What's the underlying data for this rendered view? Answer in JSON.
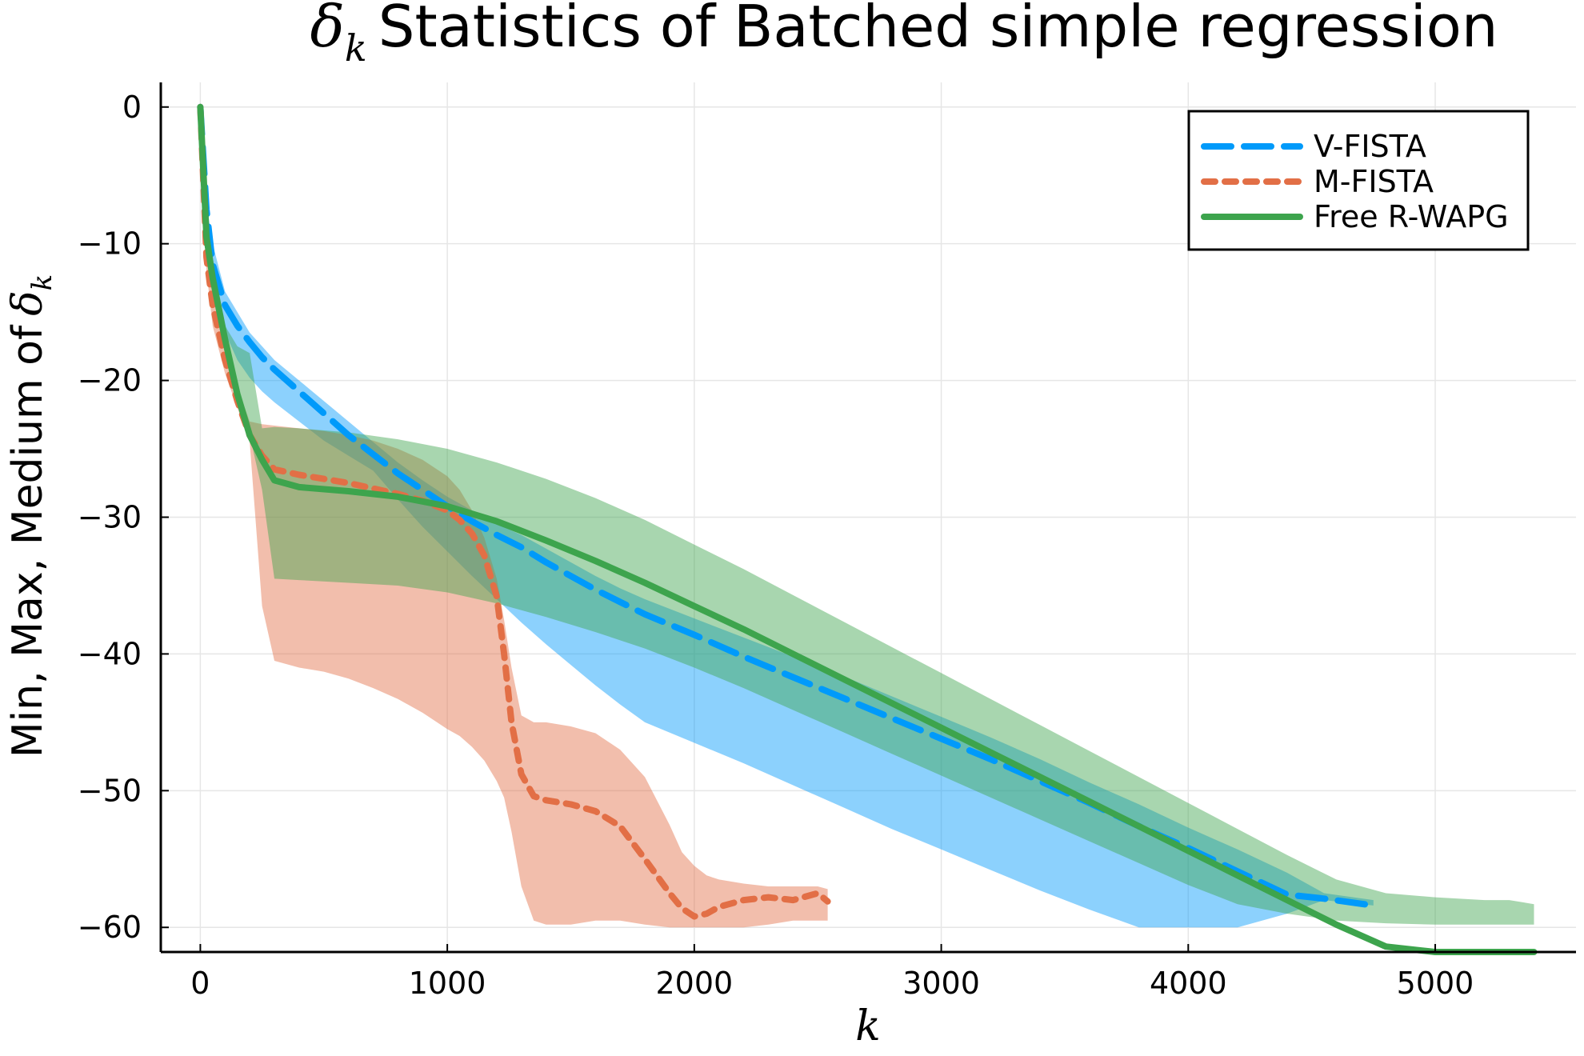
{
  "chart_data": {
    "type": "line",
    "title_symbol": "δ",
    "title_subscript": "k",
    "title_text": "Statistics of Batched simple regression",
    "xlabel": "k",
    "ylabel_text": "Min, Max, Medium of",
    "ylabel_symbol": "δ",
    "ylabel_subscript": "k",
    "xlim": [
      -160,
      5570
    ],
    "ylim": [
      -61.8,
      1.8
    ],
    "xticks": [
      0,
      1000,
      2000,
      3000,
      4000,
      5000
    ],
    "yticks": [
      0,
      -10,
      -20,
      -30,
      -40,
      -50,
      -60
    ],
    "xtick_labels": [
      "0",
      "1000",
      "2000",
      "3000",
      "4000",
      "5000"
    ],
    "ytick_labels": [
      "0",
      "−10",
      "−20",
      "−30",
      "−40",
      "−50",
      "−60"
    ],
    "grid": true,
    "legend_position": "top-right",
    "series": [
      {
        "name": "V-FISTA",
        "color": "#009AFA",
        "style": "dash",
        "x": [
          0,
          25,
          50,
          100,
          150,
          200,
          250,
          300,
          400,
          500,
          600,
          700,
          800,
          900,
          1000,
          1100,
          1200,
          1300,
          1400,
          1500,
          1600,
          1700,
          1800,
          2000,
          2200,
          2400,
          2600,
          2800,
          3000,
          3200,
          3400,
          3600,
          3800,
          4000,
          4200,
          4400,
          4550,
          4750
        ],
        "median": [
          0,
          -7.5,
          -11.5,
          -14.5,
          -16,
          -17.2,
          -18.3,
          -19.2,
          -20.8,
          -22.4,
          -24,
          -25.4,
          -26.8,
          -28,
          -29.2,
          -30.3,
          -31.3,
          -32.2,
          -33.3,
          -34.3,
          -35.3,
          -36.2,
          -37.1,
          -38.6,
          -40.2,
          -41.7,
          -43.2,
          -44.7,
          -46.2,
          -47.7,
          -49.3,
          -50.9,
          -52.6,
          -54.2,
          -55.9,
          -57.6,
          -57.9,
          -58.4
        ],
        "min": [
          0,
          -8.5,
          -13,
          -16.5,
          -18.5,
          -19.8,
          -20.8,
          -21.6,
          -23,
          -24.4,
          -25.5,
          -26.6,
          -28.7,
          -30.7,
          -32.5,
          -34.3,
          -36,
          -37.7,
          -39.3,
          -40.8,
          -42.3,
          -43.7,
          -45,
          -46.5,
          -48,
          -49.6,
          -51.2,
          -52.8,
          -54.3,
          -55.8,
          -57.3,
          -58.7,
          -60,
          -60,
          -60,
          -59,
          -58,
          -58.4
        ],
        "max": [
          0,
          -7,
          -10,
          -13.5,
          -15,
          -16.5,
          -17.5,
          -18.5,
          -20,
          -21.5,
          -23,
          -24.5,
          -26,
          -27.3,
          -28.5,
          -29.5,
          -30.5,
          -31.3,
          -32.3,
          -33.3,
          -34.3,
          -35.2,
          -36,
          -37.4,
          -38.8,
          -40.2,
          -41.6,
          -43.1,
          -44.6,
          -46.1,
          -47.7,
          -49.4,
          -51,
          -52.7,
          -54.3,
          -56,
          -57.5,
          -58
        ]
      },
      {
        "name": "M-FISTA",
        "color": "#E26F46",
        "style": "dot",
        "x": [
          0,
          25,
          50,
          100,
          150,
          200,
          250,
          300,
          400,
          500,
          600,
          700,
          800,
          900,
          1000,
          1050,
          1100,
          1150,
          1200,
          1230,
          1260,
          1300,
          1350,
          1400,
          1500,
          1600,
          1700,
          1800,
          1900,
          1950,
          2000,
          2050,
          2100,
          2200,
          2300,
          2400,
          2500,
          2540
        ],
        "median": [
          0,
          -11,
          -14.5,
          -18.5,
          -21.5,
          -24,
          -25.5,
          -26.5,
          -26.9,
          -27.2,
          -27.5,
          -27.9,
          -28.3,
          -28.8,
          -29.5,
          -30.2,
          -31.2,
          -32.8,
          -35.8,
          -40,
          -45,
          -48.8,
          -50.4,
          -50.7,
          -51,
          -51.5,
          -52.6,
          -55,
          -57.5,
          -58.6,
          -59.2,
          -59,
          -58.5,
          -58,
          -57.8,
          -58,
          -57.5,
          -58.1
        ],
        "min": [
          0,
          -12,
          -16,
          -19.5,
          -22,
          -24.5,
          -36.5,
          -40.5,
          -41,
          -41.3,
          -41.8,
          -42.5,
          -43.3,
          -44.3,
          -45.5,
          -46,
          -46.8,
          -47.8,
          -49.3,
          -50.5,
          -53,
          -57,
          -59.5,
          -59.8,
          -59.8,
          -59.5,
          -59.5,
          -59.8,
          -60,
          -60,
          -60,
          -60,
          -60,
          -60,
          -59.8,
          -59.5,
          -59.5,
          -59.5
        ],
        "max": [
          0,
          -10.5,
          -13.5,
          -17.5,
          -20.5,
          -23,
          -23.2,
          -23.3,
          -23.5,
          -23.7,
          -24,
          -24.4,
          -25,
          -25.8,
          -27,
          -28,
          -29.5,
          -31.5,
          -34.5,
          -37.5,
          -41,
          -44.5,
          -45,
          -45,
          -45.3,
          -45.8,
          -47,
          -49,
          -52.5,
          -54.5,
          -55.5,
          -56.2,
          -56.5,
          -56.8,
          -57,
          -57,
          -57,
          -57.2
        ]
      },
      {
        "name": "Free R-WAPG",
        "color": "#3DA44D",
        "style": "solid",
        "x": [
          0,
          25,
          50,
          100,
          150,
          200,
          250,
          300,
          400,
          600,
          800,
          1000,
          1200,
          1400,
          1600,
          1800,
          2000,
          2200,
          2400,
          2600,
          2800,
          3000,
          3200,
          3400,
          3600,
          3800,
          4000,
          4200,
          4400,
          4600,
          4800,
          5000,
          5200,
          5300,
          5400
        ],
        "median": [
          0,
          -9.5,
          -12.5,
          -17,
          -21,
          -24,
          -25.8,
          -27.3,
          -27.8,
          -28.1,
          -28.5,
          -29.2,
          -30.3,
          -31.7,
          -33.2,
          -34.8,
          -36.5,
          -38.2,
          -40,
          -41.8,
          -43.6,
          -45.4,
          -47.2,
          -49,
          -50.8,
          -52.6,
          -54.4,
          -56.2,
          -58,
          -59.8,
          -61.4,
          -62.2,
          -62.6,
          -62.8,
          -63
        ],
        "min": [
          0,
          -9.5,
          -12.5,
          -17,
          -21,
          -24,
          -28,
          -34.5,
          -34.6,
          -34.8,
          -35,
          -35.5,
          -36.3,
          -37.3,
          -38.4,
          -39.6,
          -41,
          -42.5,
          -44.1,
          -45.7,
          -47.3,
          -48.9,
          -50.5,
          -52.1,
          -53.7,
          -55.3,
          -56.9,
          -58.3,
          -59,
          -59.5,
          -59.7,
          -59.8,
          -59.8,
          -59.8,
          -59.8
        ],
        "max": [
          0,
          -9.5,
          -12.5,
          -16,
          -17.5,
          -18,
          -23.5,
          -23.4,
          -23.5,
          -23.8,
          -24.3,
          -25,
          -26,
          -27.2,
          -28.6,
          -30.2,
          -32,
          -33.8,
          -35.7,
          -37.6,
          -39.5,
          -41.4,
          -43.3,
          -45.2,
          -47.1,
          -49,
          -50.9,
          -52.8,
          -54.7,
          -56.5,
          -57.5,
          -57.8,
          -58,
          -58,
          -58.3
        ]
      }
    ]
  }
}
